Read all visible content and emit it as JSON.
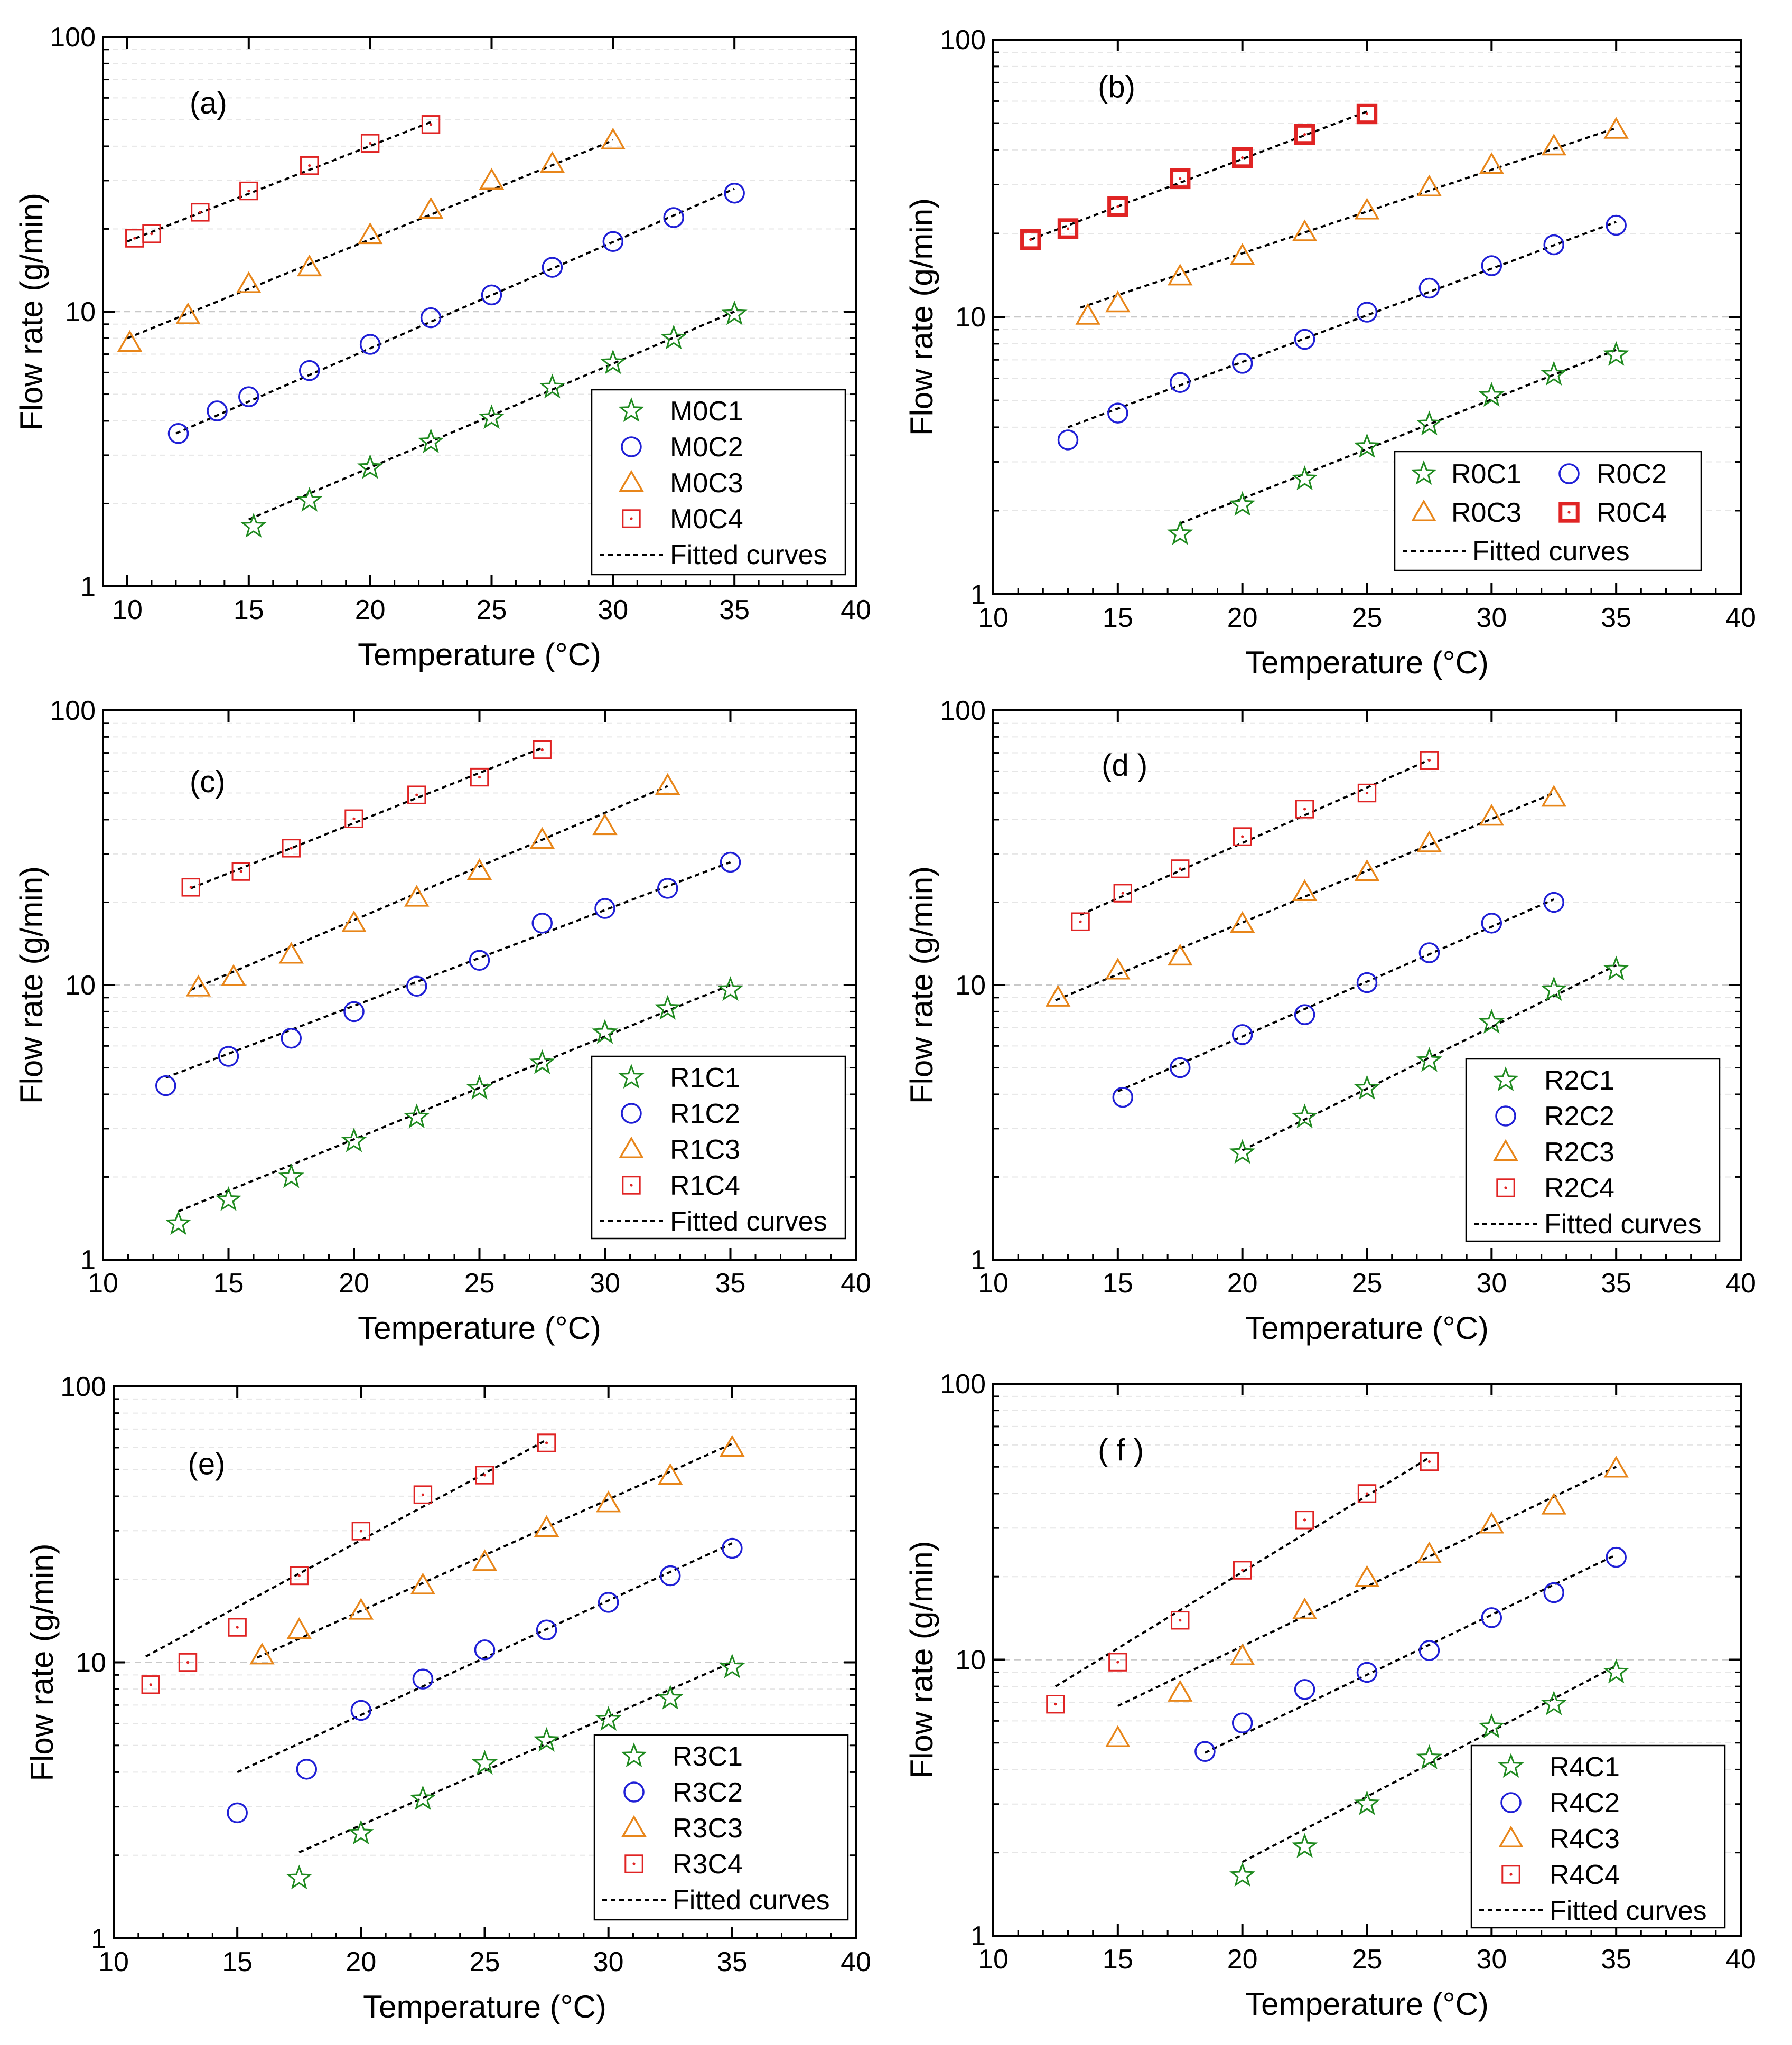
{
  "colors": {
    "C1": "#1f8a1f",
    "C2": "#1f1fd6",
    "C3": "#e8861a",
    "C4": "#e02424",
    "fit": "#000000",
    "major_grid": "#c8c8c8",
    "minor_grid": "#e6e6e6"
  },
  "chart_data": [
    {
      "type": "scatter",
      "label": "(a)",
      "xlabel": "Temperature (°C)",
      "ylabel": "Flow rate (g/min)",
      "xlim": [
        9,
        40
      ],
      "ylim": [
        1,
        100
      ],
      "yscale": "log",
      "xticks": [
        "10",
        "15",
        "20",
        "25",
        "30",
        "35",
        "40"
      ],
      "yticks": [
        "1",
        "10",
        "100"
      ],
      "grid": "horizontal",
      "legend": "bottom-right",
      "legend_columns": 1,
      "fitted_label": "Fitted curves",
      "series": [
        {
          "name": "M0C1",
          "marker": "star",
          "color_key": "C1",
          "x": [
            15.2,
            17.5,
            20,
            22.5,
            25,
            27.5,
            30,
            32.5,
            35
          ],
          "y": [
            1.65,
            2.05,
            2.7,
            3.35,
            4.1,
            5.3,
            6.5,
            8.0,
            9.8
          ],
          "fit": [
            [
              15,
              1.75
            ],
            [
              35,
              10
            ]
          ]
        },
        {
          "name": "M0C2",
          "marker": "circle",
          "color_key": "C2",
          "x": [
            12.1,
            13.7,
            15,
            17.5,
            20,
            22.5,
            25,
            27.5,
            30,
            32.5,
            35
          ],
          "y": [
            3.6,
            4.35,
            4.9,
            6.1,
            7.6,
            9.5,
            11.5,
            14.5,
            18,
            22,
            27
          ],
          "fit": [
            [
              12,
              3.6
            ],
            [
              35,
              28
            ]
          ]
        },
        {
          "name": "M0C3",
          "marker": "triangle",
          "color_key": "C3",
          "x": [
            10.1,
            12.5,
            15,
            17.5,
            20,
            22.5,
            25,
            27.5,
            30
          ],
          "y": [
            7.7,
            9.7,
            12.6,
            14.5,
            19,
            23.5,
            30,
            34.5,
            42
          ],
          "fit": [
            [
              10,
              8
            ],
            [
              30,
              42
            ]
          ]
        },
        {
          "name": "M0C4",
          "marker": "square",
          "color_key": "C4",
          "x": [
            10.3,
            11,
            13,
            15,
            17.5,
            20,
            22.5
          ],
          "y": [
            18.5,
            19.2,
            23,
            27.5,
            34,
            41,
            48
          ],
          "fit": [
            [
              10,
              18
            ],
            [
              22.5,
              49
            ]
          ]
        }
      ]
    },
    {
      "type": "scatter",
      "label": "(b)",
      "xlabel": "Temperature (°C)",
      "ylabel": "Flow rate (g/min)",
      "xlim": [
        10,
        40
      ],
      "ylim": [
        1,
        100
      ],
      "yscale": "log",
      "xticks": [
        "10",
        "15",
        "20",
        "25",
        "30",
        "35",
        "40"
      ],
      "yticks": [
        "1",
        "10",
        "100"
      ],
      "grid": "horizontal",
      "legend": "bottom-right",
      "legend_columns": 2,
      "fitted_label": "Fitted curves",
      "series": [
        {
          "name": "R0C1",
          "marker": "star",
          "color_key": "C1",
          "x": [
            17.5,
            20,
            22.5,
            25,
            27.5,
            30,
            32.5,
            35
          ],
          "y": [
            1.65,
            2.1,
            2.6,
            3.4,
            4.1,
            5.2,
            6.2,
            7.3
          ],
          "fit": [
            [
              17.5,
              1.8
            ],
            [
              35,
              7.6
            ]
          ]
        },
        {
          "name": "R0C2",
          "marker": "circle",
          "color_key": "C2",
          "x": [
            13,
            15,
            17.5,
            20,
            22.5,
            25,
            27.5,
            30,
            32.5,
            35
          ],
          "y": [
            3.6,
            4.5,
            5.8,
            6.8,
            8.3,
            10.4,
            12.7,
            15.3,
            18.2,
            21.4
          ],
          "fit": [
            [
              13,
              4
            ],
            [
              35,
              22
            ]
          ]
        },
        {
          "name": "R0C3",
          "marker": "triangle",
          "color_key": "C3",
          "x": [
            13.8,
            15,
            17.5,
            20,
            22.5,
            25,
            27.5,
            30,
            32.5,
            35
          ],
          "y": [
            10.1,
            11.2,
            14,
            16.6,
            20.2,
            24.2,
            29.3,
            35.3,
            41.2,
            47.3
          ],
          "fit": [
            [
              13.5,
              10.8
            ],
            [
              35,
              48
            ]
          ]
        },
        {
          "name": "R0C4",
          "marker": "square-bold",
          "color_key": "C4",
          "x": [
            11.5,
            13,
            15,
            17.5,
            20,
            22.5,
            25
          ],
          "y": [
            19,
            20.8,
            25,
            31.5,
            37.5,
            45.5,
            54
          ],
          "fit": [
            [
              11.5,
              19
            ],
            [
              25,
              55
            ]
          ]
        }
      ]
    },
    {
      "type": "scatter",
      "label": "(c)",
      "xlabel": "Temperature (°C)",
      "ylabel": "Flow rate (g/min)",
      "xlim": [
        10,
        40
      ],
      "ylim": [
        1,
        100
      ],
      "yscale": "log",
      "xticks": [
        "10",
        "15",
        "20",
        "25",
        "30",
        "35",
        "40"
      ],
      "yticks": [
        "1",
        "10",
        "100"
      ],
      "grid": "horizontal",
      "legend": "bottom-right",
      "legend_columns": 1,
      "fitted_label": "Fitted curves",
      "series": [
        {
          "name": "R1C1",
          "marker": "star",
          "color_key": "C1",
          "x": [
            13,
            15,
            17.5,
            20,
            22.5,
            25,
            27.5,
            30,
            32.5,
            35
          ],
          "y": [
            1.35,
            1.65,
            2,
            2.7,
            3.3,
            4.2,
            5.2,
            6.7,
            8.2,
            9.6
          ],
          "fit": [
            [
              13,
              1.5
            ],
            [
              35,
              10
            ]
          ]
        },
        {
          "name": "R1C2",
          "marker": "circle",
          "color_key": "C2",
          "x": [
            12.5,
            15,
            17.5,
            20,
            22.5,
            25,
            27.5,
            30,
            32.5,
            35
          ],
          "y": [
            4.3,
            5.5,
            6.4,
            8,
            9.9,
            12.3,
            16.8,
            19,
            22.5,
            28
          ],
          "fit": [
            [
              12.5,
              4.6
            ],
            [
              35,
              28
            ]
          ]
        },
        {
          "name": "R1C3",
          "marker": "triangle",
          "color_key": "C3",
          "x": [
            13.8,
            15.2,
            17.5,
            20,
            22.5,
            25,
            27.5,
            30,
            32.5
          ],
          "y": [
            9.8,
            10.7,
            12.9,
            16.8,
            20.8,
            26,
            33.8,
            37.9,
            53.1
          ],
          "fit": [
            [
              13.5,
              9.6
            ],
            [
              32.5,
              53
            ]
          ]
        },
        {
          "name": "R1C4",
          "marker": "square",
          "color_key": "C4",
          "x": [
            13.5,
            15.5,
            17.5,
            20,
            22.5,
            25,
            27.5
          ],
          "y": [
            22.7,
            25.9,
            31.5,
            40.3,
            49.2,
            57.1,
            71.9
          ],
          "fit": [
            [
              13.5,
              22.5
            ],
            [
              27.5,
              73
            ]
          ]
        }
      ]
    },
    {
      "type": "scatter",
      "label": "(d )",
      "xlabel": "Temperature (°C)",
      "ylabel": "Flow rate (g/min)",
      "xlim": [
        10,
        40
      ],
      "ylim": [
        1,
        100
      ],
      "yscale": "log",
      "xticks": [
        "10",
        "15",
        "20",
        "25",
        "30",
        "35",
        "40"
      ],
      "yticks": [
        "1",
        "10",
        "100"
      ],
      "grid": "horizontal",
      "legend": "bottom-right",
      "legend_columns": 1,
      "fitted_label": "Fitted curves",
      "series": [
        {
          "name": "R2C1",
          "marker": "star",
          "color_key": "C1",
          "x": [
            20,
            22.5,
            25,
            27.5,
            30,
            32.5,
            35
          ],
          "y": [
            2.45,
            3.3,
            4.2,
            5.3,
            7.3,
            9.6,
            11.4
          ],
          "fit": [
            [
              20,
              2.5
            ],
            [
              35,
              11.8
            ]
          ]
        },
        {
          "name": "R2C2",
          "marker": "circle",
          "color_key": "C2",
          "x": [
            15.2,
            17.5,
            20,
            22.5,
            25,
            27.5,
            30,
            32.5
          ],
          "y": [
            3.9,
            5,
            6.6,
            7.8,
            10.2,
            13.1,
            16.8,
            20
          ],
          "fit": [
            [
              15,
              4.1
            ],
            [
              32.5,
              20.5
            ]
          ]
        },
        {
          "name": "R2C3",
          "marker": "triangle",
          "color_key": "C3",
          "x": [
            12.6,
            15,
            17.5,
            20,
            22.5,
            25,
            27.5,
            30,
            32.5
          ],
          "y": [
            9,
            11.3,
            12.7,
            16.7,
            21.8,
            25.8,
            32.8,
            41,
            48.1
          ],
          "fit": [
            [
              12.5,
              8.8
            ],
            [
              32.5,
              50
            ]
          ]
        },
        {
          "name": "R2C4",
          "marker": "square",
          "color_key": "C4",
          "x": [
            13.5,
            15.2,
            17.5,
            20,
            22.5,
            25,
            27.5
          ],
          "y": [
            17,
            21.6,
            26.5,
            34.7,
            43.7,
            50,
            65.8
          ],
          "fit": [
            [
              13.5,
              18
            ],
            [
              27.5,
              66
            ]
          ]
        }
      ]
    },
    {
      "type": "scatter",
      "label": "(e)",
      "xlabel": "Temperature (°C)",
      "ylabel": "Flow rate (g/min)",
      "xlim": [
        10,
        40
      ],
      "ylim": [
        1,
        100
      ],
      "yscale": "log",
      "xticks": [
        "10",
        "15",
        "20",
        "25",
        "30",
        "35",
        "40"
      ],
      "yticks": [
        "1",
        "10",
        "100"
      ],
      "grid": "horizontal",
      "legend": "bottom-right",
      "legend_columns": 1,
      "fitted_label": "Fitted curves",
      "series": [
        {
          "name": "R3C1",
          "marker": "star",
          "color_key": "C1",
          "x": [
            17.5,
            20,
            22.5,
            25,
            27.5,
            30,
            32.5,
            35
          ],
          "y": [
            1.65,
            2.4,
            3.2,
            4.3,
            5.2,
            6.2,
            7.4,
            9.6
          ],
          "fit": [
            [
              17.5,
              2.05
            ],
            [
              35,
              10
            ]
          ]
        },
        {
          "name": "R3C2",
          "marker": "circle",
          "color_key": "C2",
          "x": [
            15,
            17.8,
            20,
            22.5,
            25,
            27.5,
            30,
            32.5,
            35
          ],
          "y": [
            2.85,
            4.1,
            6.7,
            8.7,
            11.1,
            13.1,
            16.5,
            20.6,
            25.9
          ],
          "fit": [
            [
              15,
              4
            ],
            [
              35,
              27
            ]
          ]
        },
        {
          "name": "R3C3",
          "marker": "triangle",
          "color_key": "C3",
          "x": [
            16,
            17.5,
            20,
            22.5,
            25,
            27.5,
            30,
            32.5,
            35
          ],
          "y": [
            10.6,
            13.1,
            15.4,
            19,
            23.1,
            30.7,
            37.7,
            47.4,
            60
          ],
          "fit": [
            [
              15.8,
              10.4
            ],
            [
              35,
              62
            ]
          ]
        },
        {
          "name": "R3C4",
          "marker": "square",
          "color_key": "C4",
          "x": [
            11.5,
            13,
            15,
            17.5,
            20,
            22.5,
            25,
            27.5
          ],
          "y": [
            8.3,
            10,
            13.4,
            20.6,
            29.9,
            40.5,
            47.7,
            62.4
          ],
          "fit": [
            [
              11.3,
              10.5
            ],
            [
              27.5,
              64
            ]
          ]
        }
      ]
    },
    {
      "type": "scatter",
      "label": "( f )",
      "xlabel": "Temperature (°C)",
      "ylabel": "Flow rate (g/min)",
      "xlim": [
        10,
        40
      ],
      "ylim": [
        1,
        100
      ],
      "yscale": "log",
      "xticks": [
        "10",
        "15",
        "20",
        "25",
        "30",
        "35",
        "40"
      ],
      "yticks": [
        "1",
        "10",
        "100"
      ],
      "grid": "horizontal",
      "legend": "bottom-right",
      "legend_columns": 1,
      "fitted_label": "Fitted curves",
      "series": [
        {
          "name": "R4C1",
          "marker": "star",
          "color_key": "C1",
          "x": [
            20,
            22.5,
            25,
            27.5,
            30,
            32.5,
            35
          ],
          "y": [
            1.65,
            2.1,
            3,
            4.4,
            5.7,
            6.9,
            9
          ],
          "fit": [
            [
              20,
              1.85
            ],
            [
              35,
              9.5
            ]
          ]
        },
        {
          "name": "R4C2",
          "marker": "circle",
          "color_key": "C2",
          "x": [
            18.5,
            20,
            22.5,
            25,
            27.5,
            30,
            32.5,
            35
          ],
          "y": [
            4.65,
            5.9,
            7.8,
            9,
            10.8,
            14.2,
            17.5,
            23.5
          ],
          "fit": [
            [
              18.5,
              4.6
            ],
            [
              35,
              24
            ]
          ]
        },
        {
          "name": "R4C3",
          "marker": "triangle",
          "color_key": "C3",
          "x": [
            15,
            17.5,
            20,
            22.5,
            25,
            27.5,
            30,
            32.5,
            35
          ],
          "y": [
            5.2,
            7.6,
            10.3,
            15.1,
            19.8,
            24.1,
            30.9,
            36.2,
            49.3
          ],
          "fit": [
            [
              15,
              6.8
            ],
            [
              35,
              50
            ]
          ]
        },
        {
          "name": "R4C4",
          "marker": "square",
          "color_key": "C4",
          "x": [
            12.5,
            15,
            17.5,
            20,
            22.5,
            25,
            27.5
          ],
          "y": [
            6.9,
            9.8,
            13.9,
            21.1,
            32.1,
            40,
            52.2
          ],
          "fit": [
            [
              12.5,
              8
            ],
            [
              27.5,
              54
            ]
          ]
        }
      ]
    }
  ]
}
